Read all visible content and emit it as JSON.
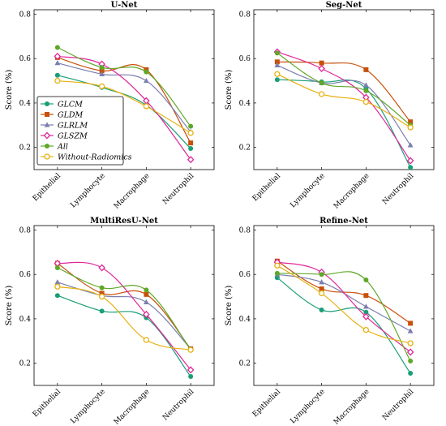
{
  "series_styles": [
    {
      "name": "GLCM",
      "color": "#1a9e77",
      "marker": "circle"
    },
    {
      "name": "GLDM",
      "color": "#c8500a",
      "marker": "square"
    },
    {
      "name": "GLRLM",
      "color": "#7a7fae",
      "marker": "triangle"
    },
    {
      "name": "GLSZM",
      "color": "#e0279a",
      "marker": "diamond"
    },
    {
      "name": "All",
      "color": "#5fa827",
      "marker": "circle"
    },
    {
      "name": "Without-Radiomics",
      "color": "#e7b00f",
      "marker": "ring"
    }
  ],
  "chart_data": [
    {
      "type": "line",
      "title": "U-Net",
      "ylabel": "Score (%)",
      "categories": [
        "Epithelial",
        "Lymphocyte",
        "Macrophage",
        "Neutrophil"
      ],
      "ylim": [
        0.1,
        0.82
      ],
      "yticks": [
        0.2,
        0.4,
        0.6,
        0.8
      ],
      "legend": "bottom-left",
      "series": [
        {
          "name": "GLCM",
          "values": [
            0.525,
            0.47,
            0.39,
            0.195
          ]
        },
        {
          "name": "GLDM",
          "values": [
            0.605,
            0.545,
            0.55,
            0.22
          ]
        },
        {
          "name": "GLRLM",
          "values": [
            0.58,
            0.53,
            0.5,
            0.27
          ]
        },
        {
          "name": "GLSZM",
          "values": [
            0.61,
            0.575,
            0.41,
            0.145
          ]
        },
        {
          "name": "All",
          "values": [
            0.65,
            0.56,
            0.54,
            0.295
          ]
        },
        {
          "name": "Without-Radiomics",
          "values": [
            0.5,
            0.475,
            0.385,
            0.265
          ]
        }
      ]
    },
    {
      "type": "line",
      "title": "Seg-Net",
      "ylabel": "Score (%)",
      "categories": [
        "Epithelial",
        "Lymphocyte",
        "Macrophage",
        "Neutrophil"
      ],
      "ylim": [
        0.1,
        0.82
      ],
      "yticks": [
        0.2,
        0.4,
        0.6,
        0.8
      ],
      "series": [
        {
          "name": "GLCM",
          "values": [
            0.505,
            0.495,
            0.465,
            0.11
          ]
        },
        {
          "name": "GLDM",
          "values": [
            0.585,
            0.58,
            0.55,
            0.315
          ]
        },
        {
          "name": "GLRLM",
          "values": [
            0.57,
            0.49,
            0.48,
            0.21
          ]
        },
        {
          "name": "GLSZM",
          "values": [
            0.63,
            0.555,
            0.425,
            0.14
          ]
        },
        {
          "name": "All",
          "values": [
            0.625,
            0.49,
            0.455,
            0.3
          ]
        },
        {
          "name": "Without-Radiomics",
          "values": [
            0.53,
            0.44,
            0.405,
            0.29
          ]
        }
      ]
    },
    {
      "type": "line",
      "title": "MultiResU-Net",
      "ylabel": "Score (%)",
      "categories": [
        "Epithelial",
        "Lymphocyte",
        "Macrophage",
        "Neutrophil"
      ],
      "ylim": [
        0.1,
        0.82
      ],
      "yticks": [
        0.2,
        0.4,
        0.6,
        0.8
      ],
      "series": [
        {
          "name": "GLCM",
          "values": [
            0.505,
            0.435,
            0.405,
            0.14
          ]
        },
        {
          "name": "GLDM",
          "values": [
            0.65,
            0.515,
            0.51,
            0.265
          ]
        },
        {
          "name": "GLRLM",
          "values": [
            0.565,
            0.505,
            0.475,
            0.265
          ]
        },
        {
          "name": "GLSZM",
          "values": [
            0.65,
            0.63,
            0.42,
            0.17
          ]
        },
        {
          "name": "All",
          "values": [
            0.63,
            0.54,
            0.53,
            0.26
          ]
        },
        {
          "name": "Without-Radiomics",
          "values": [
            0.545,
            0.5,
            0.305,
            0.26
          ]
        }
      ]
    },
    {
      "type": "line",
      "title": "Refine-Net",
      "ylabel": "Score (%)",
      "categories": [
        "Epithelial",
        "Lymphocyte",
        "Macrophage",
        "Neutrophil"
      ],
      "ylim": [
        0.1,
        0.82
      ],
      "yticks": [
        0.2,
        0.4,
        0.6,
        0.8
      ],
      "series": [
        {
          "name": "GLCM",
          "values": [
            0.585,
            0.44,
            0.43,
            0.155
          ]
        },
        {
          "name": "GLDM",
          "values": [
            0.66,
            0.535,
            0.505,
            0.38
          ]
        },
        {
          "name": "GLRLM",
          "values": [
            0.6,
            0.565,
            0.455,
            0.345
          ]
        },
        {
          "name": "GLSZM",
          "values": [
            0.655,
            0.61,
            0.41,
            0.25
          ]
        },
        {
          "name": "All",
          "values": [
            0.605,
            0.6,
            0.575,
            0.21
          ]
        },
        {
          "name": "Without-Radiomics",
          "values": [
            0.64,
            0.515,
            0.35,
            0.29
          ]
        }
      ]
    }
  ]
}
